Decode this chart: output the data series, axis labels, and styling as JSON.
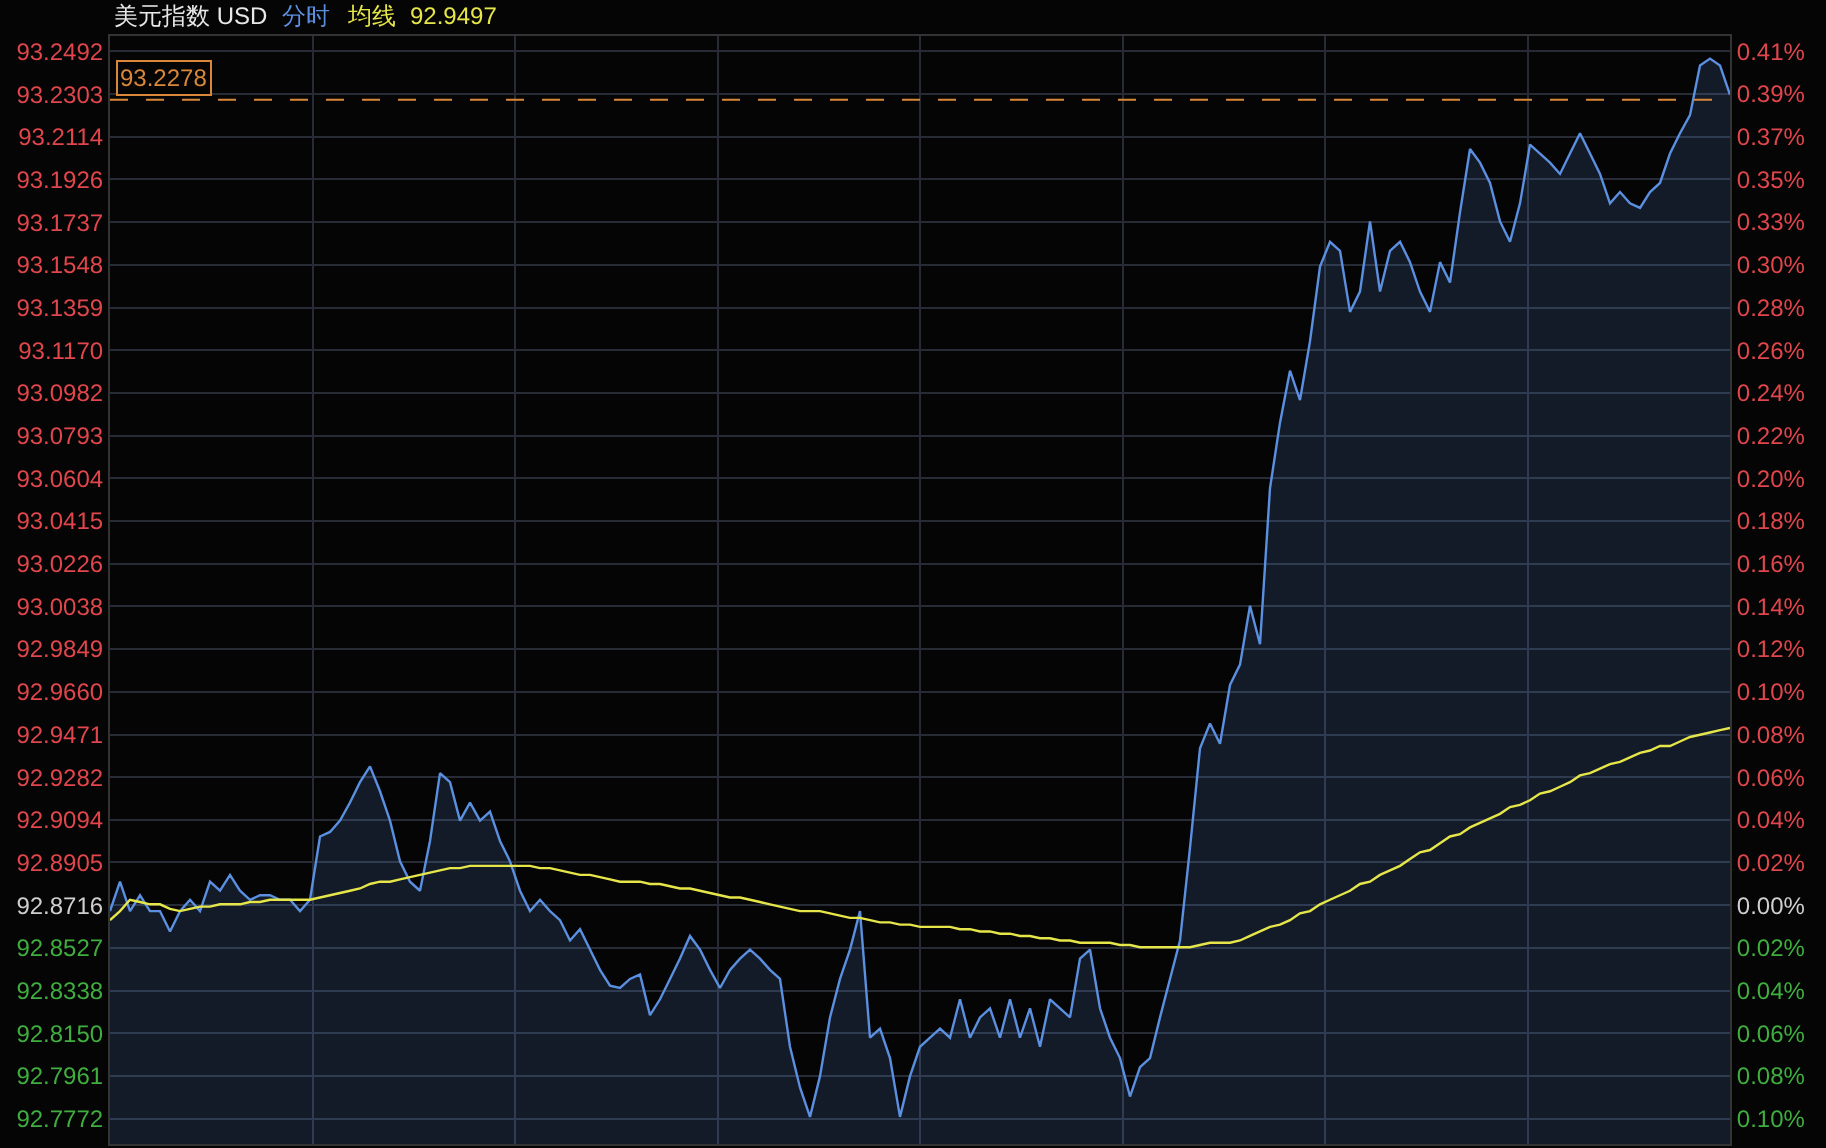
{
  "chart_data": {
    "type": "area",
    "title": "美元指数 USD",
    "legend": "top left",
    "grid": true,
    "annotations": [
      "92.9497"
    ],
    "categories": [
      null,
      null,
      null,
      null,
      null,
      null,
      null,
      null,
      null,
      null,
      null,
      null,
      null,
      null,
      null,
      null,
      null,
      null,
      null,
      null,
      null,
      null,
      null,
      null,
      null,
      null,
      null,
      null,
      null,
      null,
      null,
      null,
      null,
      null,
      null,
      null,
      null,
      null,
      null,
      null,
      null,
      null,
      null,
      null,
      null,
      null,
      null,
      null,
      null,
      null,
      null,
      null,
      null,
      null,
      null,
      null,
      null,
      null,
      null,
      null,
      null,
      null,
      null,
      null,
      null,
      null,
      null,
      null,
      null,
      null,
      null,
      null,
      null,
      null,
      null,
      null,
      null,
      null,
      null,
      null,
      null,
      null,
      null,
      null,
      null,
      null,
      null,
      null,
      null,
      null,
      null,
      null,
      null,
      null,
      null,
      null,
      null,
      null,
      null,
      null,
      null,
      null,
      null,
      null,
      null,
      null,
      null,
      null,
      null,
      null,
      null,
      null,
      null,
      null,
      null,
      null,
      null,
      null,
      null,
      null,
      null,
      null,
      null,
      null,
      null,
      null,
      null,
      null,
      null,
      null,
      null,
      null,
      null,
      null,
      null,
      null,
      null,
      null,
      null,
      null,
      null,
      null,
      null,
      null,
      null,
      null,
      null,
      null,
      null,
      null,
      null,
      null,
      null,
      null,
      null,
      null,
      null,
      null,
      null,
      null,
      null,
      null,
      null
    ],
    "series": [
      {
        "name": "分时",
        "color": "#5b8fe0",
        "values": [
          92.869,
          92.882,
          92.869,
          92.876,
          92.869,
          92.869,
          92.86,
          92.869,
          92.874,
          92.869,
          92.882,
          92.878,
          92.885,
          92.878,
          92.874,
          92.876,
          92.876,
          92.874,
          92.874,
          92.869,
          92.874,
          92.902,
          92.904,
          92.909,
          92.917,
          92.926,
          92.933,
          92.922,
          92.909,
          92.891,
          92.882,
          92.878,
          92.9,
          92.93,
          92.926,
          92.909,
          92.917,
          92.909,
          92.913,
          92.9,
          92.891,
          92.878,
          92.869,
          92.874,
          92.869,
          92.865,
          92.856,
          92.861,
          92.852,
          92.843,
          92.836,
          92.835,
          92.839,
          92.841,
          92.823,
          92.83,
          92.839,
          92.848,
          92.858,
          92.852,
          92.843,
          92.835,
          92.843,
          92.848,
          92.852,
          92.848,
          92.843,
          92.839,
          92.809,
          92.791,
          92.778,
          92.796,
          92.822,
          92.839,
          92.852,
          92.869,
          92.813,
          92.817,
          92.804,
          92.778,
          92.796,
          92.809,
          92.813,
          92.817,
          92.813,
          92.83,
          92.813,
          92.822,
          92.826,
          92.813,
          92.83,
          92.813,
          92.826,
          92.809,
          92.83,
          92.826,
          92.822,
          92.848,
          92.852,
          92.826,
          92.813,
          92.804,
          92.787,
          92.8,
          92.804,
          92.822,
          92.839,
          92.856,
          92.897,
          92.941,
          92.952,
          92.943,
          92.969,
          92.978,
          93.004,
          92.987,
          93.056,
          93.085,
          93.108,
          93.095,
          93.121,
          93.154,
          93.165,
          93.161,
          93.134,
          93.143,
          93.174,
          93.143,
          93.161,
          93.165,
          93.156,
          93.143,
          93.134,
          93.156,
          93.147,
          93.178,
          93.206,
          93.2,
          93.191,
          93.174,
          93.165,
          93.182,
          93.208,
          93.204,
          93.2,
          93.195,
          93.204,
          93.213,
          93.204,
          93.195,
          93.182,
          93.187,
          93.182,
          93.18,
          93.187,
          93.191,
          93.204,
          93.213,
          93.221,
          93.243,
          93.246,
          93.243,
          93.23
        ]
      },
      {
        "name": "均线",
        "type": "line",
        "color": "#e6e64a",
        "values": [
          92.865,
          92.869,
          92.874,
          92.873,
          92.872,
          92.872,
          92.87,
          92.869,
          92.87,
          92.871,
          92.871,
          92.872,
          92.872,
          92.872,
          92.873,
          92.873,
          92.874,
          92.874,
          92.874,
          92.874,
          92.874,
          92.875,
          92.876,
          92.877,
          92.878,
          92.879,
          92.881,
          92.882,
          92.882,
          92.883,
          92.884,
          92.885,
          92.886,
          92.887,
          92.888,
          92.888,
          92.889,
          92.889,
          92.889,
          92.889,
          92.889,
          92.889,
          92.889,
          92.888,
          92.888,
          92.887,
          92.886,
          92.885,
          92.885,
          92.884,
          92.883,
          92.882,
          92.882,
          92.882,
          92.881,
          92.881,
          92.88,
          92.879,
          92.879,
          92.878,
          92.877,
          92.876,
          92.875,
          92.875,
          92.874,
          92.873,
          92.872,
          92.871,
          92.87,
          92.869,
          92.869,
          92.869,
          92.868,
          92.867,
          92.866,
          92.866,
          92.865,
          92.864,
          92.864,
          92.863,
          92.863,
          92.862,
          92.862,
          92.862,
          92.862,
          92.861,
          92.861,
          92.86,
          92.86,
          92.859,
          92.859,
          92.858,
          92.858,
          92.857,
          92.857,
          92.856,
          92.856,
          92.855,
          92.855,
          92.855,
          92.855,
          92.854,
          92.854,
          92.853,
          92.853,
          92.853,
          92.853,
          92.853,
          92.853,
          92.854,
          92.855,
          92.855,
          92.855,
          92.856,
          92.858,
          92.86,
          92.862,
          92.863,
          92.865,
          92.868,
          92.869,
          92.872,
          92.874,
          92.876,
          92.878,
          92.881,
          92.882,
          92.885,
          92.887,
          92.889,
          92.892,
          92.895,
          92.896,
          92.899,
          92.902,
          92.903,
          92.906,
          92.908,
          92.91,
          92.912,
          92.915,
          92.916,
          92.918,
          92.921,
          92.922,
          92.924,
          92.926,
          92.929,
          92.93,
          92.932,
          92.934,
          92.935,
          92.937,
          92.939,
          92.94,
          92.942,
          92.942,
          92.944,
          92.946,
          92.947,
          92.948,
          92.949,
          92.95
        ]
      }
    ],
    "ylim": [
      92.766,
      93.256
    ],
    "yticks": [
      93.2492,
      93.2303,
      93.2114,
      93.1926,
      93.1737,
      93.1548,
      93.1359,
      {
        "value": 93.117,
        "label": "93.1170"
      },
      93.0982,
      93.0793,
      93.0604,
      93.0415,
      93.0226,
      93.0038,
      92.9849,
      {
        "value": 92.966,
        "label": "92.9660"
      },
      92.9471,
      92.9282,
      92.9094,
      92.8905,
      92.8716,
      92.8527,
      92.8338,
      {
        "value": 92.815,
        "label": "92.8150"
      },
      92.7961,
      92.7772
    ],
    "y2lim": [
      -0.1137,
      0.4139
    ],
    "y2ticks": [
      {
        "value": 0.4066,
        "label": "0.41%"
      },
      {
        "value": 0.3863,
        "label": "0.39%"
      },
      {
        "value": 0.366,
        "label": "0.37%"
      },
      {
        "value": 0.3456,
        "label": "0.35%"
      },
      {
        "value": 0.3253,
        "label": "0.33%"
      },
      {
        "value": 0.305,
        "label": "0.30%"
      },
      {
        "value": 0.2846,
        "label": "0.28%"
      },
      {
        "value": 0.2643,
        "label": "0.26%"
      },
      {
        "value": 0.244,
        "label": "0.24%"
      },
      {
        "value": 0.2236,
        "label": "0.22%"
      },
      {
        "value": 0.2033,
        "label": "0.20%"
      },
      {
        "value": 0.183,
        "label": "0.18%"
      },
      {
        "value": 0.1626,
        "label": "0.16%"
      },
      {
        "value": 0.1423,
        "label": "0.14%"
      },
      {
        "value": 0.122,
        "label": "0.12%"
      },
      {
        "value": 0.1017,
        "label": "0.10%"
      },
      {
        "value": 0.0813,
        "label": "0.08%"
      },
      {
        "value": 0.061,
        "label": "0.06%"
      },
      {
        "value": 0.0407,
        "label": "0.04%"
      },
      {
        "value": 0.0203,
        "label": "0.02%"
      },
      {
        "value": 0,
        "label": "0.00%"
      },
      {
        "value": -0.0203,
        "label": "0.02%"
      },
      {
        "value": -0.0407,
        "label": "0.04%"
      },
      {
        "value": -0.061,
        "label": "0.06%"
      },
      {
        "value": -0.0813,
        "label": "0.08%"
      },
      {
        "value": -0.1017,
        "label": "0.10%"
      }
    ],
    "ref_lines": [
      {
        "axis": "y",
        "value": 93.2278,
        "label": "93.2278",
        "color": "#d9883a",
        "line_style": "dashed"
      }
    ]
  }
}
